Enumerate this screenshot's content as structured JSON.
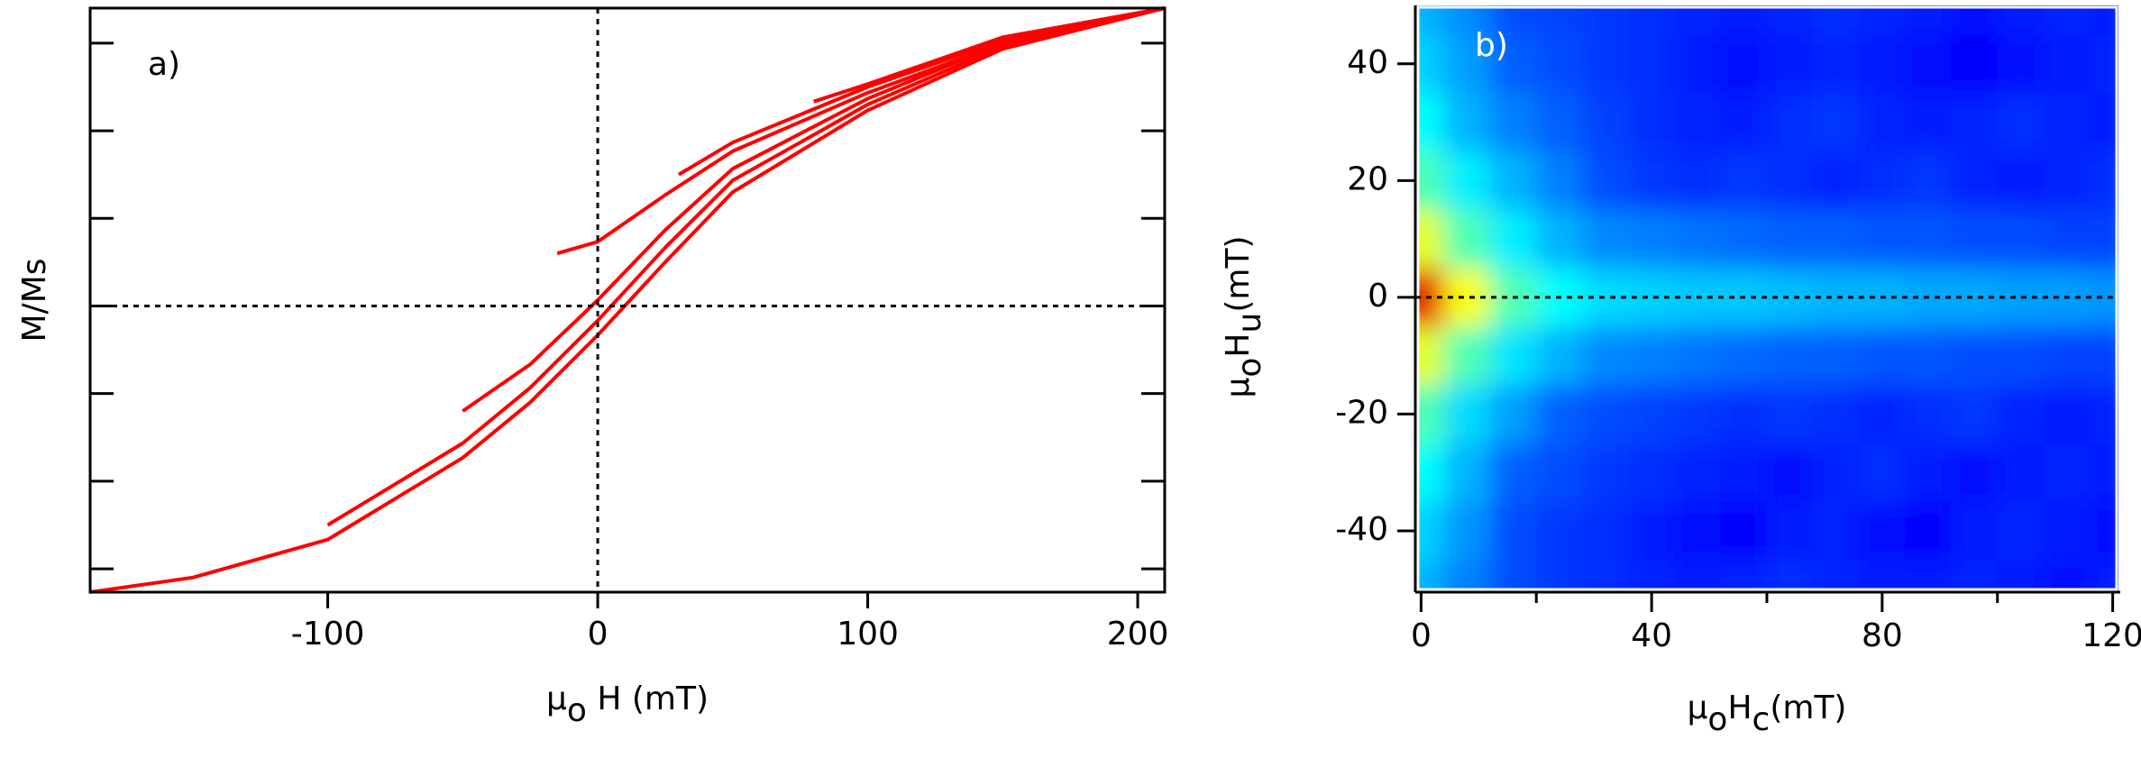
{
  "chart_data": [
    {
      "type": "line",
      "annotation": "a)",
      "xlabel": [
        {
          "text": "μ"
        },
        {
          "text": "o",
          "sub": true
        },
        {
          "text": " H (mT)"
        }
      ],
      "ylabel": [
        {
          "text": "M/Ms"
        }
      ],
      "xlim": [
        -188,
        210
      ],
      "xticks": [
        -100,
        0,
        100,
        200
      ],
      "ylim": [
        -0.98,
        1.02
      ],
      "yticks": [
        -0.9,
        -0.6,
        -0.3,
        0,
        0.3,
        0.6,
        0.9
      ],
      "zero_lines": true,
      "color": "#ff0000",
      "series": [
        {
          "x": [
            -188,
            -150,
            -100,
            -50,
            -25,
            0,
            25,
            50,
            100,
            150,
            210
          ],
          "values": [
            -0.98,
            -0.93,
            -0.8,
            -0.52,
            -0.33,
            -0.1,
            0.15,
            0.39,
            0.67,
            0.88,
            1.02
          ]
        },
        {
          "x": [
            -100,
            -50,
            -25,
            0,
            25,
            50,
            100,
            150,
            210
          ],
          "values": [
            -0.75,
            -0.47,
            -0.28,
            -0.05,
            0.2,
            0.43,
            0.69,
            0.89,
            1.02
          ]
        },
        {
          "x": [
            -50,
            -25,
            0,
            25,
            50,
            100,
            150,
            210
          ],
          "values": [
            -0.36,
            -0.2,
            0.02,
            0.26,
            0.47,
            0.71,
            0.9,
            1.02
          ]
        },
        {
          "x": [
            -15,
            0,
            25,
            50,
            100,
            150,
            210
          ],
          "values": [
            0.18,
            0.22,
            0.38,
            0.53,
            0.73,
            0.9,
            1.02
          ]
        },
        {
          "x": [
            30,
            50,
            100,
            150,
            210
          ],
          "values": [
            0.45,
            0.56,
            0.75,
            0.91,
            1.02
          ]
        },
        {
          "x": [
            80,
            100,
            150,
            210
          ],
          "values": [
            0.7,
            0.76,
            0.92,
            1.02
          ]
        }
      ]
    },
    {
      "type": "heatmap",
      "annotation": "b)",
      "colorscale": "jet",
      "xlabel": [
        {
          "text": "μ"
        },
        {
          "text": "o",
          "sub": true
        },
        {
          "text": "H"
        },
        {
          "text": "c",
          "sub": true
        },
        {
          "text": "(mT)"
        }
      ],
      "ylabel": [
        {
          "text": "μ"
        },
        {
          "text": "o",
          "sub": true
        },
        {
          "text": "H"
        },
        {
          "text": "u",
          "sub": true
        },
        {
          "text": "(mT)"
        }
      ],
      "xlim": [
        -1,
        121
      ],
      "xticks": [
        0,
        40,
        80,
        120
      ],
      "xminorticks": [
        20,
        60,
        100
      ],
      "ylim": [
        -50.5,
        50
      ],
      "yticks": [
        -40,
        -20,
        0,
        20,
        40
      ],
      "zero_line": true,
      "x": [
        0,
        8,
        16,
        24,
        32,
        40,
        48,
        56,
        64,
        72,
        80,
        88,
        96,
        104,
        112,
        120
      ],
      "y": [
        -50,
        -40,
        -30,
        -20,
        -10,
        0,
        10,
        20,
        30,
        40,
        50
      ],
      "z": [
        [
          0.3,
          0.25,
          0.2,
          0.18,
          0.17,
          0.16,
          0.15,
          0.16,
          0.17,
          0.16,
          0.15,
          0.15,
          0.16,
          0.15,
          0.14,
          0.15
        ],
        [
          0.33,
          0.27,
          0.2,
          0.18,
          0.17,
          0.15,
          0.14,
          0.13,
          0.15,
          0.16,
          0.14,
          0.13,
          0.15,
          0.16,
          0.15,
          0.14
        ],
        [
          0.38,
          0.3,
          0.22,
          0.2,
          0.18,
          0.17,
          0.16,
          0.15,
          0.14,
          0.16,
          0.17,
          0.15,
          0.14,
          0.15,
          0.16,
          0.15
        ],
        [
          0.45,
          0.34,
          0.28,
          0.22,
          0.2,
          0.19,
          0.18,
          0.17,
          0.18,
          0.17,
          0.16,
          0.17,
          0.18,
          0.16,
          0.15,
          0.16
        ],
        [
          0.6,
          0.45,
          0.35,
          0.3,
          0.26,
          0.25,
          0.24,
          0.23,
          0.22,
          0.22,
          0.21,
          0.21,
          0.2,
          0.2,
          0.19,
          0.19
        ],
        [
          0.9,
          0.62,
          0.45,
          0.38,
          0.34,
          0.33,
          0.32,
          0.32,
          0.31,
          0.3,
          0.3,
          0.29,
          0.29,
          0.28,
          0.28,
          0.27
        ],
        [
          0.6,
          0.45,
          0.36,
          0.3,
          0.26,
          0.25,
          0.24,
          0.23,
          0.22,
          0.22,
          0.21,
          0.21,
          0.2,
          0.2,
          0.19,
          0.19
        ],
        [
          0.45,
          0.36,
          0.3,
          0.25,
          0.2,
          0.18,
          0.17,
          0.18,
          0.17,
          0.16,
          0.17,
          0.18,
          0.16,
          0.15,
          0.16,
          0.17
        ],
        [
          0.38,
          0.3,
          0.25,
          0.22,
          0.19,
          0.17,
          0.16,
          0.15,
          0.17,
          0.18,
          0.16,
          0.15,
          0.16,
          0.17,
          0.16,
          0.15
        ],
        [
          0.33,
          0.28,
          0.22,
          0.2,
          0.18,
          0.17,
          0.15,
          0.14,
          0.15,
          0.16,
          0.15,
          0.14,
          0.13,
          0.14,
          0.15,
          0.16
        ],
        [
          0.3,
          0.26,
          0.2,
          0.19,
          0.18,
          0.17,
          0.16,
          0.15,
          0.16,
          0.17,
          0.16,
          0.15,
          0.14,
          0.15,
          0.16,
          0.15
        ]
      ]
    }
  ]
}
